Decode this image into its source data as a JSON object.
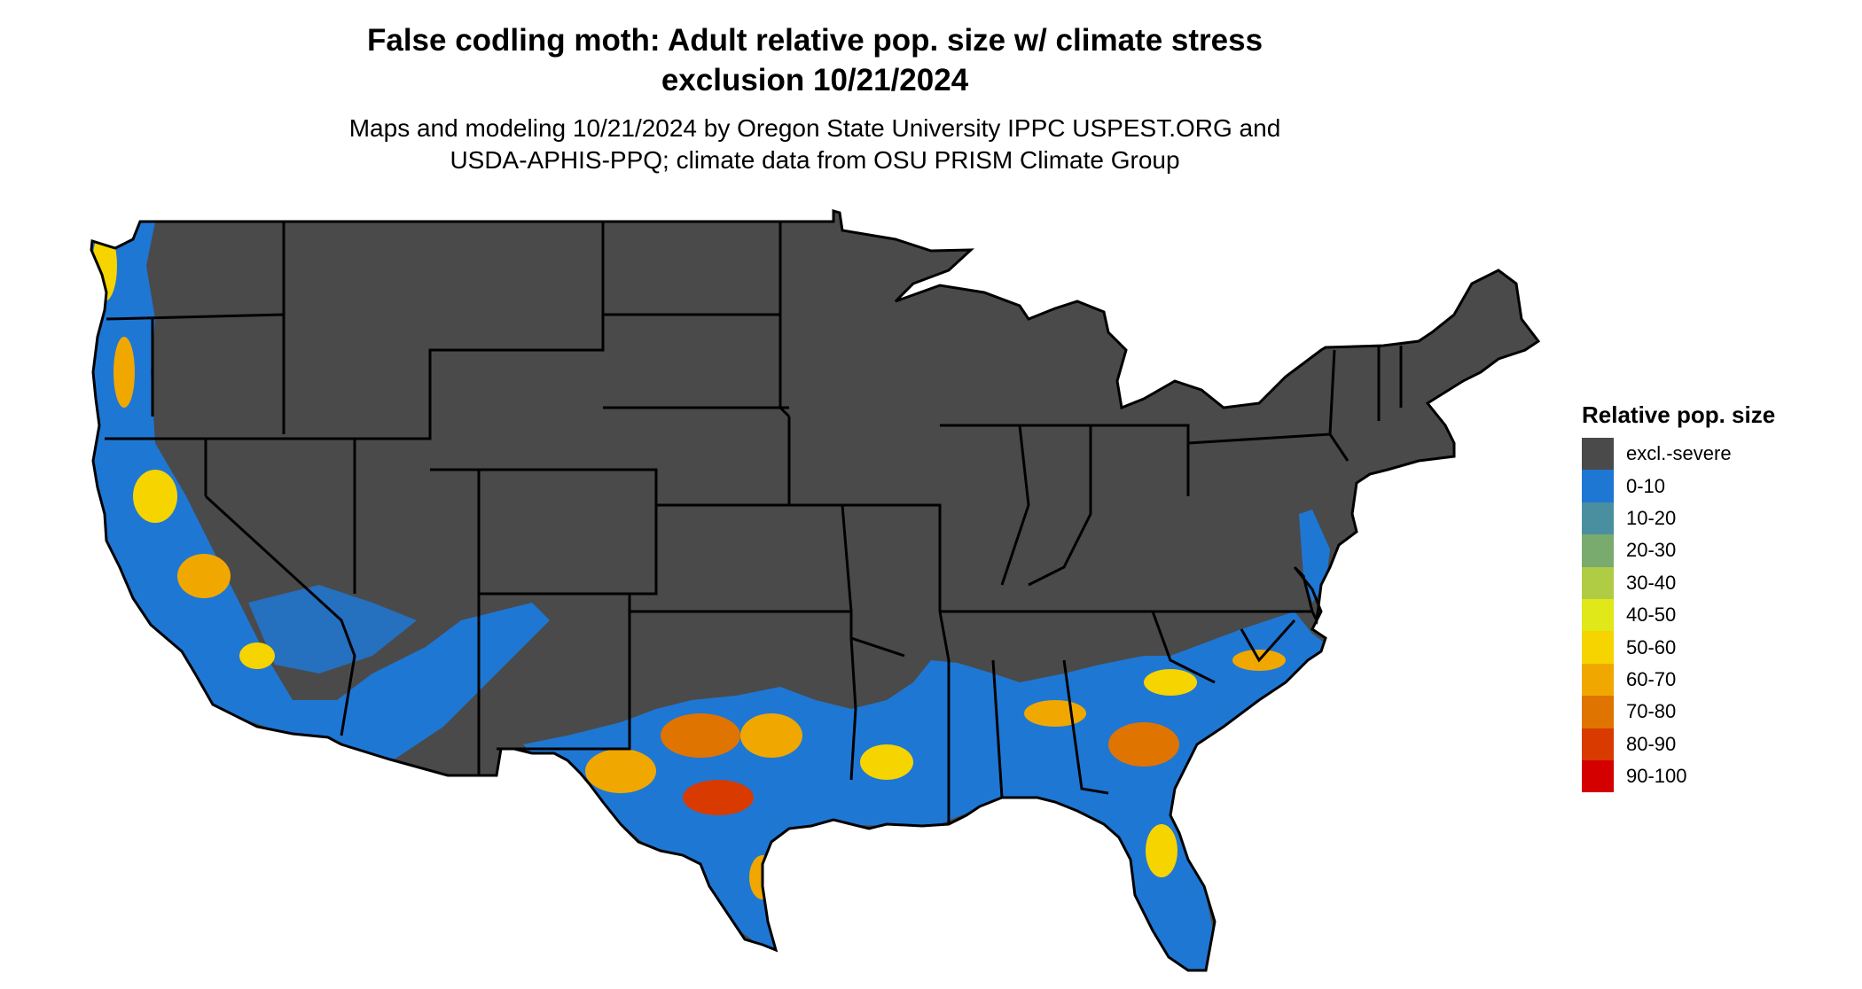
{
  "title": {
    "line1": "False codling moth: Adult relative pop. size w/ climate stress",
    "line2": "exclusion 10/21/2024"
  },
  "subtitle": {
    "line1": "Maps and modeling 10/21/2024 by Oregon State University IPPC USPEST.ORG and",
    "line2": "USDA-APHIS-PPQ; climate data from OSU PRISM Climate Group"
  },
  "legend": {
    "title": "Relative pop. size",
    "items": [
      {
        "label": "excl.-severe",
        "color": "#4a4a4a"
      },
      {
        "label": "0-10",
        "color": "#1f77d4"
      },
      {
        "label": "10-20",
        "color": "#4a8fa0"
      },
      {
        "label": "20-30",
        "color": "#7aab6e"
      },
      {
        "label": "30-40",
        "color": "#b0cc44"
      },
      {
        "label": "40-50",
        "color": "#e0e81a"
      },
      {
        "label": "50-60",
        "color": "#f5d400"
      },
      {
        "label": "60-70",
        "color": "#f0a800"
      },
      {
        "label": "70-80",
        "color": "#e07400"
      },
      {
        "label": "80-90",
        "color": "#d83a00"
      },
      {
        "label": "90-100",
        "color": "#d40000"
      }
    ]
  },
  "map": {
    "region": "contiguous-us",
    "colors": {
      "excluded": "#4a4a4a",
      "low": "#1f77d4",
      "mid": "#f5d400",
      "high": "#e07400",
      "peak": "#d83a00",
      "border": "#000000"
    }
  }
}
